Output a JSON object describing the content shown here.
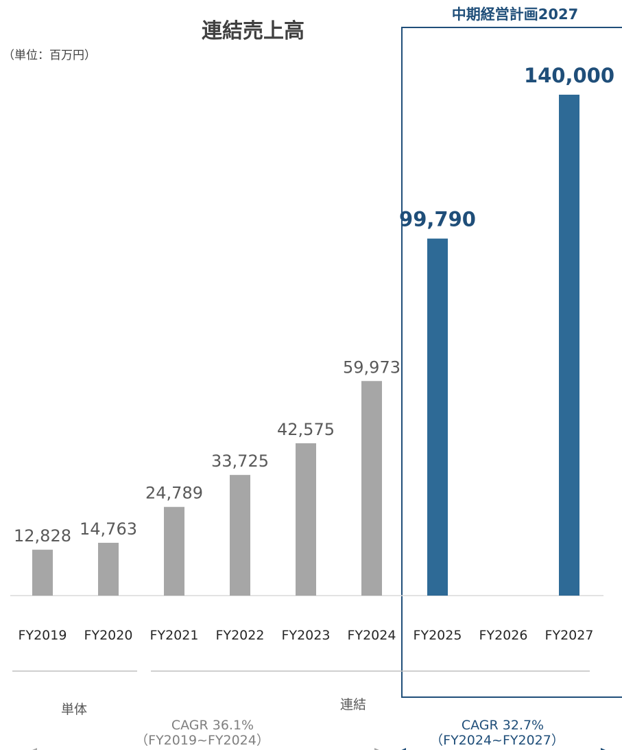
{
  "chart_data": {
    "type": "bar",
    "title": "連結売上高",
    "unit_label": "（単位：百万円）",
    "plan_label": "中期経営計画2027",
    "categories": [
      "FY2019",
      "FY2020",
      "FY2021",
      "FY2022",
      "FY2023",
      "FY2024",
      "FY2025",
      "FY2026",
      "FY2027"
    ],
    "values": [
      12828,
      14763,
      24789,
      33725,
      42575,
      59973,
      99790,
      null,
      140000
    ],
    "value_labels": [
      "12,828",
      "14,763",
      "24,789",
      "33,725",
      "42,575",
      "59,973",
      "99,790",
      "",
      "140,000"
    ],
    "is_plan": [
      false,
      false,
      false,
      false,
      false,
      false,
      true,
      true,
      true
    ],
    "ylim": [
      0,
      140000
    ],
    "grid": false,
    "colors": {
      "actual": "#a6a6a6",
      "plan": "#2e6a96",
      "plan_text": "#1f4e79",
      "plan_border": "#1f4e79"
    },
    "groups": [
      {
        "label": "単体"
      },
      {
        "label": "連結"
      }
    ],
    "cagr": [
      {
        "line1": "CAGR 36.1%",
        "line2": "（FY2019~FY2024）"
      },
      {
        "line1": "CAGR 32.7%",
        "line2": "（FY2024~FY2027）"
      }
    ]
  }
}
